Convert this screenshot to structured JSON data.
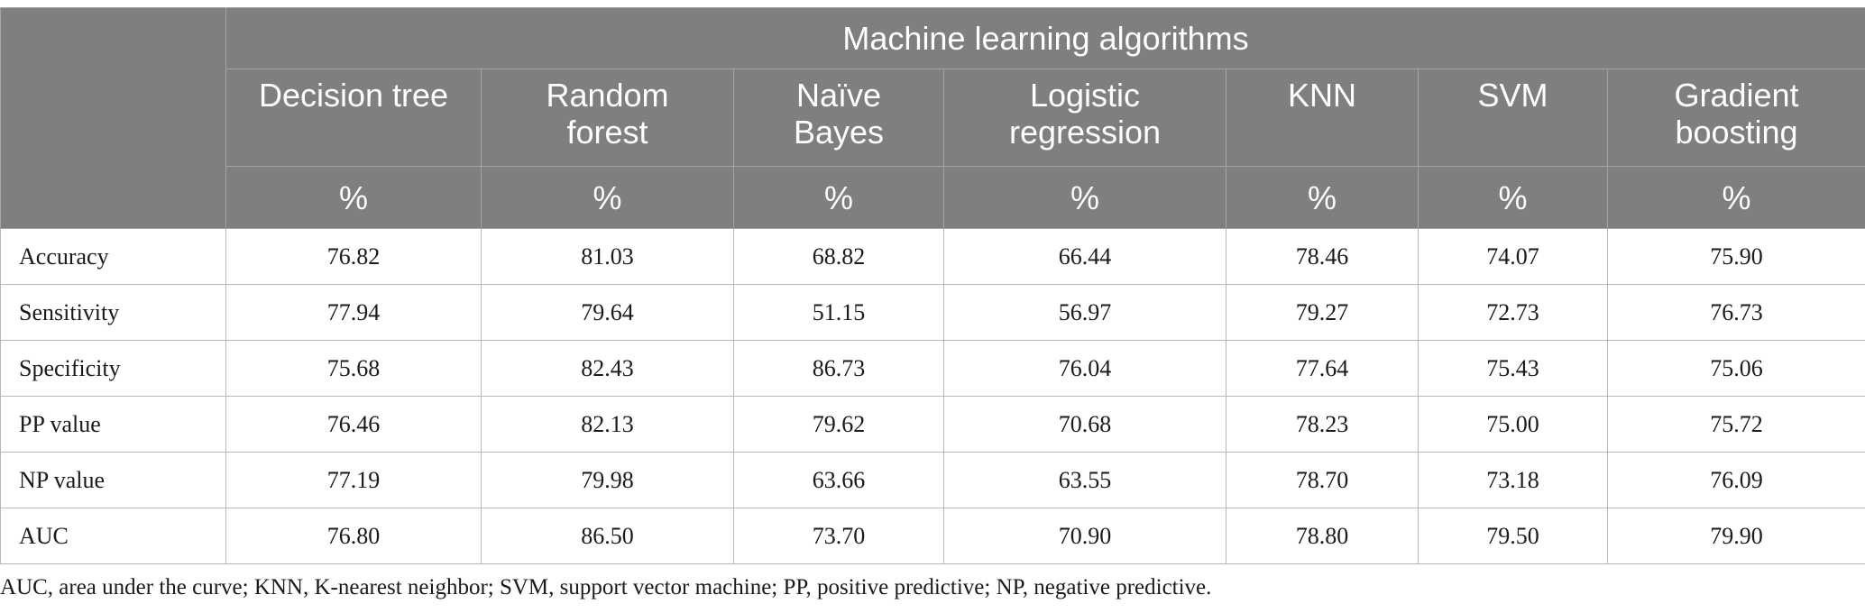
{
  "table": {
    "group_header": "Machine learning algorithms",
    "stub_header": "",
    "algorithms": [
      {
        "line1": "Decision tree",
        "line2": ""
      },
      {
        "line1": "Random",
        "line2": "forest"
      },
      {
        "line1": "Naïve",
        "line2": "Bayes"
      },
      {
        "line1": "Logistic",
        "line2": "regression"
      },
      {
        "line1": "KNN",
        "line2": ""
      },
      {
        "line1": "SVM",
        "line2": ""
      },
      {
        "line1": "Gradient",
        "line2": "boosting"
      }
    ],
    "unit": "%",
    "rows": [
      {
        "metric": "Accuracy",
        "values": [
          "76.82",
          "81.03",
          "68.82",
          "66.44",
          "78.46",
          "74.07",
          "75.90"
        ]
      },
      {
        "metric": "Sensitivity",
        "values": [
          "77.94",
          "79.64",
          "51.15",
          "56.97",
          "79.27",
          "72.73",
          "76.73"
        ]
      },
      {
        "metric": "Specificity",
        "values": [
          "75.68",
          "82.43",
          "86.73",
          "76.04",
          "77.64",
          "75.43",
          "75.06"
        ]
      },
      {
        "metric": "PP value",
        "values": [
          "76.46",
          "82.13",
          "79.62",
          "70.68",
          "78.23",
          "75.00",
          "75.72"
        ]
      },
      {
        "metric": "NP value",
        "values": [
          "77.19",
          "79.98",
          "63.66",
          "63.55",
          "78.70",
          "73.18",
          "76.09"
        ]
      },
      {
        "metric": "AUC",
        "values": [
          "76.80",
          "86.50",
          "73.70",
          "70.90",
          "78.80",
          "79.50",
          "79.90"
        ]
      }
    ]
  },
  "footnote": "AUC, area under the curve; KNN, K-nearest neighbor; SVM, support vector machine; PP, positive predictive; NP, negative predictive."
}
